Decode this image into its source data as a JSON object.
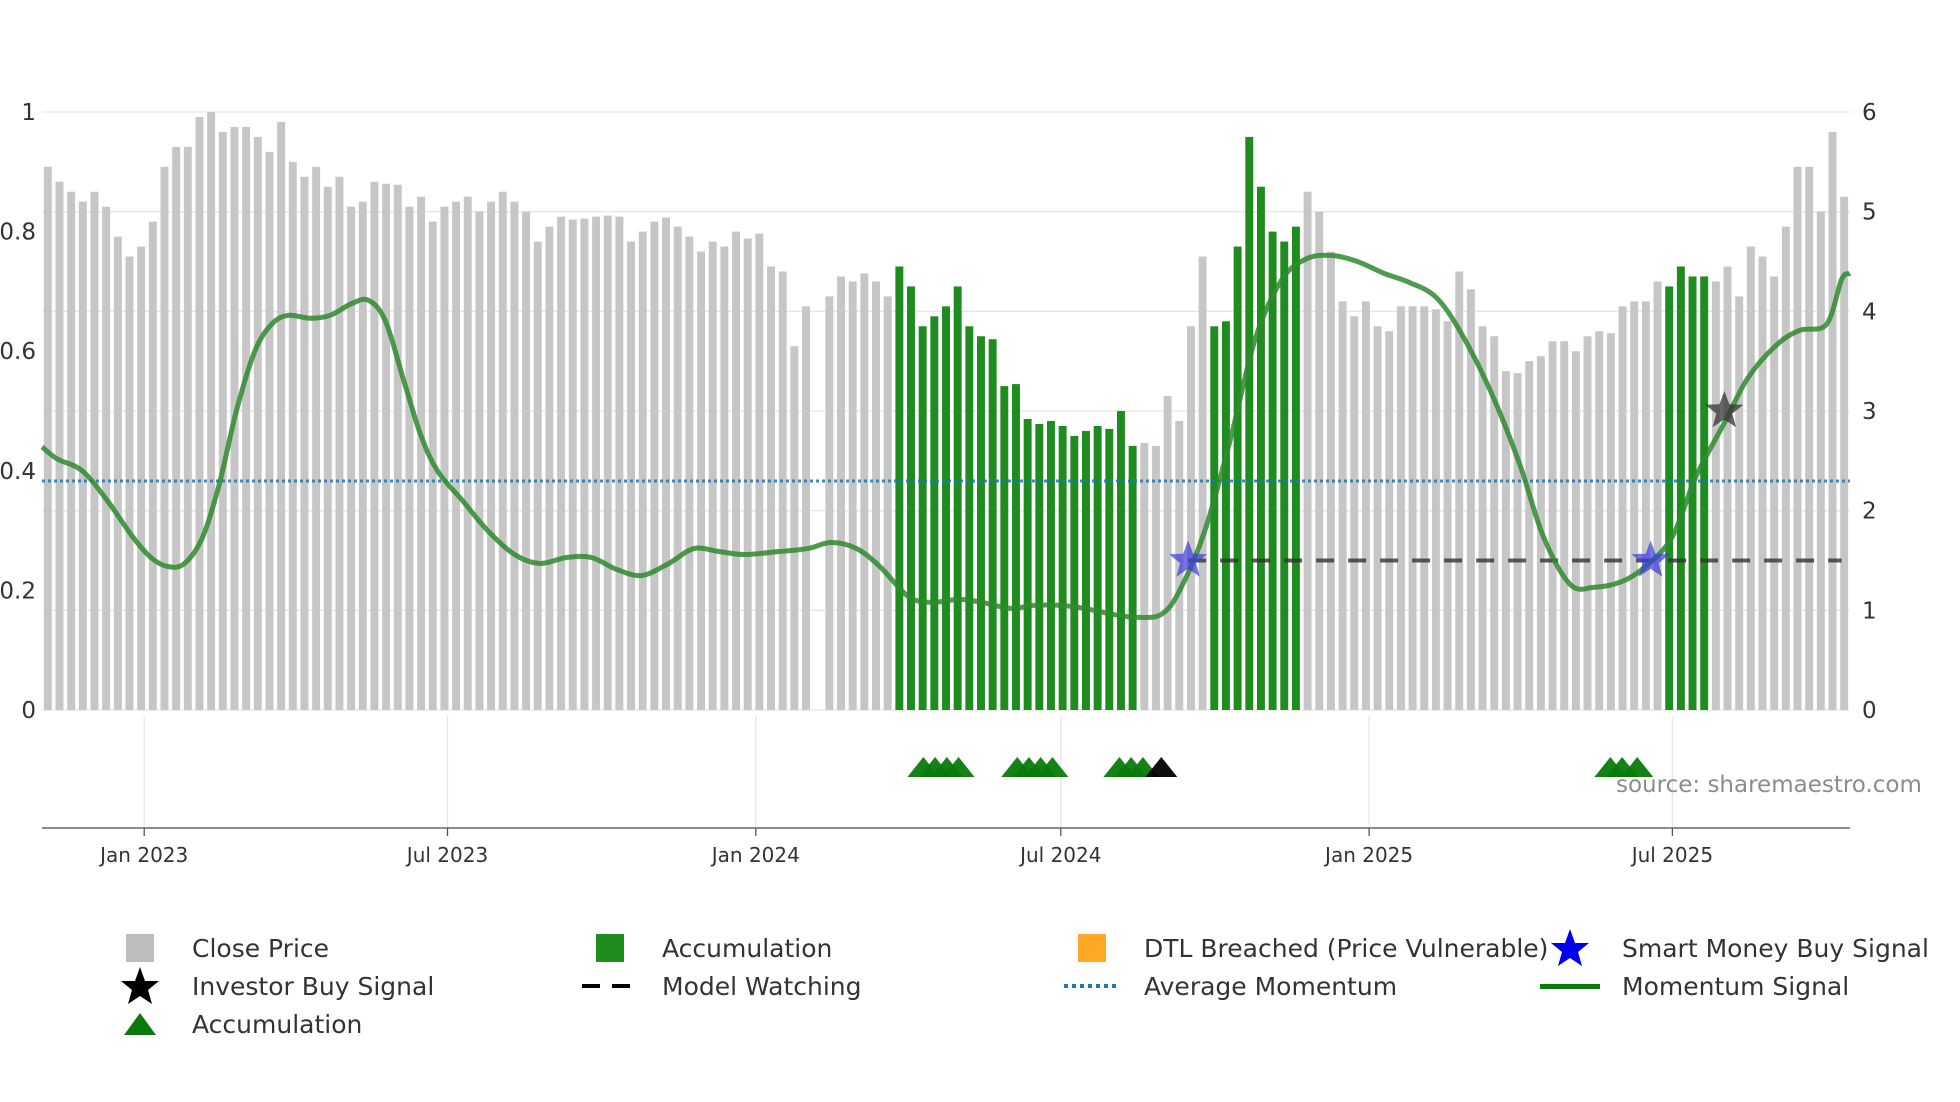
{
  "chart_data": {
    "type": "bar",
    "source": "source: sharemaestro.com",
    "left_axis": {
      "range": [
        0,
        1
      ],
      "ticks": [
        "0",
        "0.2",
        "0.4",
        "0.6",
        "0.8",
        "1"
      ]
    },
    "right_axis": {
      "range": [
        0,
        6
      ],
      "ticks": [
        "0",
        "1",
        "2",
        "3",
        "4",
        "5",
        "6"
      ]
    },
    "x_axis": {
      "range": [
        "2022-11-01",
        "2025-10-15"
      ],
      "ticks": [
        {
          "date": "2023-01-01",
          "label": "Jan 2023"
        },
        {
          "date": "2023-07-01",
          "label": "Jul 2023"
        },
        {
          "date": "2024-01-01",
          "label": "Jan 2024"
        },
        {
          "date": "2024-07-01",
          "label": "Jul 2024"
        },
        {
          "date": "2025-01-01",
          "label": "Jan 2025"
        },
        {
          "date": "2025-07-01",
          "label": "Jul 2025"
        }
      ]
    },
    "close_price": [
      5.45,
      5.3,
      5.2,
      5.1,
      5.2,
      5.05,
      4.75,
      4.55,
      4.65,
      4.9,
      5.45,
      5.65,
      5.65,
      5.95,
      6.0,
      5.8,
      5.85,
      5.85,
      5.75,
      5.6,
      5.9,
      5.5,
      5.35,
      5.45,
      5.25,
      5.35,
      5.05,
      5.1,
      5.3,
      5.28,
      5.27,
      5.05,
      5.15,
      4.9,
      5.05,
      5.1,
      5.15,
      5.0,
      5.1,
      5.2,
      5.1,
      5.0,
      4.7,
      4.85,
      4.95,
      4.92,
      4.93,
      4.95,
      4.96,
      4.95,
      4.7,
      4.8,
      4.9,
      4.94,
      4.85,
      4.75,
      4.6,
      4.7,
      4.65,
      4.8,
      4.73,
      4.78,
      4.45,
      4.4,
      3.65,
      4.05,
      null,
      4.15,
      4.35,
      4.3,
      4.38,
      4.3,
      4.15,
      4.45,
      4.25,
      3.85,
      3.95,
      4.05,
      4.25,
      3.85,
      3.75,
      3.72,
      3.25,
      3.27,
      2.92,
      2.87,
      2.9,
      2.85,
      2.75,
      2.8,
      2.85,
      2.82,
      3.0,
      2.65,
      2.68,
      2.65,
      3.15,
      2.9,
      3.85,
      4.55,
      3.85,
      3.9,
      4.65,
      5.75,
      5.25,
      4.8,
      4.7,
      4.85,
      5.2,
      5.0,
      4.6,
      4.1,
      3.95,
      4.1,
      3.85,
      3.8,
      4.05,
      4.05,
      4.05,
      4.02,
      3.9,
      4.4,
      4.22,
      3.85,
      3.75,
      3.4,
      3.38,
      3.5,
      3.55,
      3.7,
      3.7,
      3.6,
      3.75,
      3.8,
      3.78,
      4.05,
      4.1,
      4.1,
      4.3,
      4.25,
      4.45,
      4.35,
      4.35,
      4.3,
      4.45,
      4.15,
      4.65,
      4.55,
      4.35,
      4.85,
      5.45,
      5.45,
      5.0,
      5.8,
      5.15
    ],
    "accumulation_bars": [
      [
        73,
        84
      ],
      [
        81,
        93
      ],
      [
        100,
        107
      ],
      [
        139,
        142
      ]
    ],
    "accumulation_markers": [
      {
        "date": "2024-04-10"
      },
      {
        "date": "2024-04-17"
      },
      {
        "date": "2024-04-24"
      },
      {
        "date": "2024-05-01"
      },
      {
        "date": "2024-06-05"
      },
      {
        "date": "2024-06-12"
      },
      {
        "date": "2024-06-19"
      },
      {
        "date": "2024-06-26"
      },
      {
        "date": "2024-08-05"
      },
      {
        "date": "2024-08-12"
      },
      {
        "date": "2024-08-19"
      },
      {
        "date": "2025-05-25"
      },
      {
        "date": "2025-06-01"
      },
      {
        "date": "2025-06-10"
      }
    ],
    "investor_buy_markers_bottom": [
      {
        "date": "2024-08-30"
      }
    ],
    "smart_money_buy_signals": [
      {
        "date": "2024-09-15",
        "value": 0.25
      },
      {
        "date": "2025-06-18",
        "value": 0.25
      }
    ],
    "investor_buy_signals": [
      {
        "date": "2025-08-01",
        "value": 0.5
      }
    ],
    "model_watching": {
      "from": "2024-09-15",
      "to": "2025-10-10",
      "value": 0.25
    },
    "average_momentum": 0.383,
    "momentum_signal": [
      [
        "2022-11-01",
        0.44
      ],
      [
        "2022-11-10",
        0.42
      ],
      [
        "2022-11-25",
        0.4
      ],
      [
        "2022-12-10",
        0.35
      ],
      [
        "2022-12-25",
        0.29
      ],
      [
        "2023-01-05",
        0.255
      ],
      [
        "2023-01-15",
        0.24
      ],
      [
        "2023-01-25",
        0.245
      ],
      [
        "2023-02-05",
        0.29
      ],
      [
        "2023-02-15",
        0.38
      ],
      [
        "2023-02-25",
        0.5
      ],
      [
        "2023-03-08",
        0.6
      ],
      [
        "2023-03-18",
        0.645
      ],
      [
        "2023-03-28",
        0.66
      ],
      [
        "2023-04-10",
        0.655
      ],
      [
        "2023-04-22",
        0.66
      ],
      [
        "2023-05-05",
        0.68
      ],
      [
        "2023-05-15",
        0.685
      ],
      [
        "2023-05-25",
        0.65
      ],
      [
        "2023-06-05",
        0.55
      ],
      [
        "2023-06-15",
        0.46
      ],
      [
        "2023-06-25",
        0.4
      ],
      [
        "2023-07-10",
        0.35
      ],
      [
        "2023-07-25",
        0.3
      ],
      [
        "2023-08-10",
        0.26
      ],
      [
        "2023-08-25",
        0.245
      ],
      [
        "2023-09-10",
        0.255
      ],
      [
        "2023-09-25",
        0.255
      ],
      [
        "2023-10-10",
        0.235
      ],
      [
        "2023-10-25",
        0.225
      ],
      [
        "2023-11-10",
        0.245
      ],
      [
        "2023-11-25",
        0.27
      ],
      [
        "2023-12-10",
        0.265
      ],
      [
        "2023-12-25",
        0.26
      ],
      [
        "2024-01-15",
        0.265
      ],
      [
        "2024-02-01",
        0.27
      ],
      [
        "2024-02-15",
        0.28
      ],
      [
        "2024-03-01",
        0.27
      ],
      [
        "2024-03-15",
        0.24
      ],
      [
        "2024-04-01",
        0.19
      ],
      [
        "2024-04-15",
        0.18
      ],
      [
        "2024-05-01",
        0.185
      ],
      [
        "2024-05-15",
        0.18
      ],
      [
        "2024-06-01",
        0.17
      ],
      [
        "2024-06-15",
        0.175
      ],
      [
        "2024-07-01",
        0.175
      ],
      [
        "2024-07-15",
        0.17
      ],
      [
        "2024-08-01",
        0.16
      ],
      [
        "2024-08-15",
        0.155
      ],
      [
        "2024-08-30",
        0.16
      ],
      [
        "2024-09-10",
        0.2
      ],
      [
        "2024-09-25",
        0.3
      ],
      [
        "2024-10-10",
        0.45
      ],
      [
        "2024-10-25",
        0.62
      ],
      [
        "2024-11-10",
        0.72
      ],
      [
        "2024-11-25",
        0.755
      ],
      [
        "2024-12-10",
        0.76
      ],
      [
        "2024-12-25",
        0.75
      ],
      [
        "2025-01-10",
        0.73
      ],
      [
        "2025-01-25",
        0.715
      ],
      [
        "2025-02-10",
        0.69
      ],
      [
        "2025-02-25",
        0.63
      ],
      [
        "2025-03-15",
        0.53
      ],
      [
        "2025-04-01",
        0.41
      ],
      [
        "2025-04-15",
        0.29
      ],
      [
        "2025-05-01",
        0.21
      ],
      [
        "2025-05-15",
        0.205
      ],
      [
        "2025-06-01",
        0.215
      ],
      [
        "2025-06-15",
        0.24
      ],
      [
        "2025-07-01",
        0.29
      ],
      [
        "2025-07-15",
        0.39
      ],
      [
        "2025-08-01",
        0.48
      ],
      [
        "2025-08-15",
        0.555
      ],
      [
        "2025-09-01",
        0.61
      ],
      [
        "2025-09-15",
        0.635
      ],
      [
        "2025-10-01",
        0.645
      ],
      [
        "2025-10-10",
        0.72
      ],
      [
        "2025-10-15",
        0.73
      ]
    ],
    "legend": [
      {
        "label": "Close Price",
        "symbol": "square",
        "color": "#bdbdbd"
      },
      {
        "label": "Accumulation",
        "symbol": "square",
        "color": "#1e8c1e"
      },
      {
        "label": "DTL Breached (Price Vulnerable)",
        "symbol": "square",
        "color": "#ffa726"
      },
      {
        "label": "Smart Money Buy Signal",
        "symbol": "star",
        "color": "#0000ee"
      },
      {
        "label": "Investor Buy Signal",
        "symbol": "star",
        "color": "#000000"
      },
      {
        "label": "Model Watching",
        "symbol": "dash",
        "color": "#000000"
      },
      {
        "label": "Average Momentum",
        "symbol": "dot",
        "color": "#1f77b4"
      },
      {
        "label": "Momentum Signal",
        "symbol": "line",
        "color": "#0a7a0a"
      },
      {
        "label": "Accumulation",
        "symbol": "triangle",
        "color": "#0a7a0a"
      }
    ]
  }
}
